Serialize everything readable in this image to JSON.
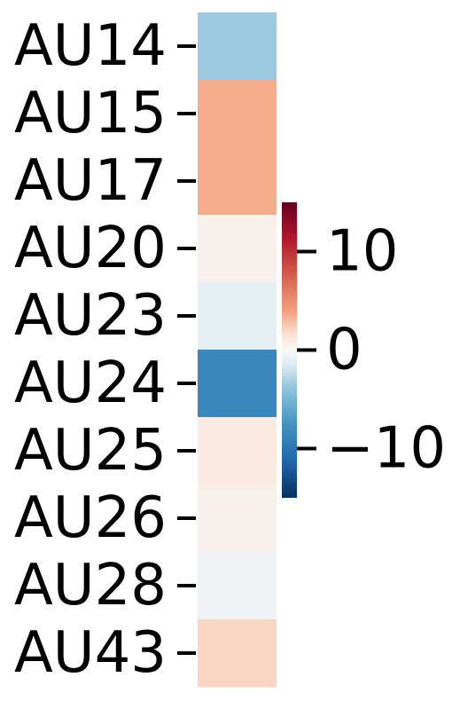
{
  "chart_data": {
    "type": "heatmap",
    "title": "",
    "xlabel": "",
    "ylabel": "",
    "categories": [
      "AU14",
      "AU15",
      "AU17",
      "AU20",
      "AU23",
      "AU24",
      "AU25",
      "AU26",
      "AU28",
      "AU43"
    ],
    "values": [
      -3.5,
      3.5,
      3.5,
      0.5,
      -1.0,
      -8.5,
      1.0,
      0.5,
      -0.5,
      2.0
    ],
    "colorbar": {
      "colormap": "RdBu_r",
      "vmin": -15,
      "vmax": 15,
      "ticks": [
        10,
        0,
        -10
      ],
      "tick_labels": [
        "10",
        "0",
        "−10"
      ],
      "placement": "right"
    },
    "grid": false,
    "legend": "none"
  }
}
